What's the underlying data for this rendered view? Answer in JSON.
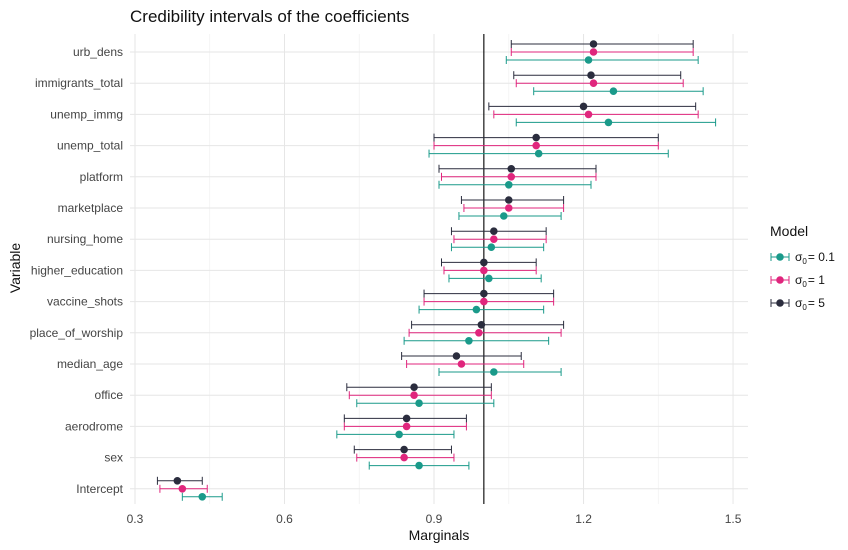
{
  "chart_data": {
    "type": "errorbar",
    "title": "Credibility intervals of the coefficients",
    "xlabel": "Marginals",
    "ylabel": "Variable",
    "xlim": [
      0.29,
      1.53
    ],
    "x_ticks": [
      0.3,
      0.6,
      0.9,
      1.2,
      1.5
    ],
    "x_tick_labels": [
      "0.3",
      "0.6",
      "0.9",
      "1.2",
      "1.5"
    ],
    "reference_line_x": 1.0,
    "grid": true,
    "legend_position": "right",
    "legend_title": "Model",
    "categories": [
      "urb_dens",
      "immigrants_total",
      "unemp_immg",
      "unemp_total",
      "platform",
      "marketplace",
      "nursing_home",
      "higher_education",
      "vaccine_shots",
      "place_of_worship",
      "median_age",
      "office",
      "aerodrome",
      "sex",
      "Intercept"
    ],
    "series": [
      {
        "name": "σ0 = 0.1",
        "legend_base": "σ",
        "legend_sub": "0",
        "legend_rest": "= 0.1",
        "color": "#1a9a8a",
        "mean": [
          1.21,
          1.26,
          1.25,
          1.11,
          1.05,
          1.04,
          1.015,
          1.01,
          0.985,
          0.97,
          1.02,
          0.87,
          0.83,
          0.87,
          0.435
        ],
        "lower": [
          1.045,
          1.1,
          1.065,
          0.89,
          0.91,
          0.95,
          0.935,
          0.93,
          0.87,
          0.84,
          0.91,
          0.745,
          0.705,
          0.77,
          0.395
        ],
        "upper": [
          1.43,
          1.44,
          1.465,
          1.37,
          1.215,
          1.155,
          1.12,
          1.115,
          1.12,
          1.13,
          1.155,
          1.02,
          0.94,
          0.97,
          0.475
        ]
      },
      {
        "name": "σ0 = 1",
        "legend_base": "σ",
        "legend_sub": "0",
        "legend_rest": "= 1",
        "color": "#e0267d",
        "mean": [
          1.22,
          1.22,
          1.21,
          1.105,
          1.055,
          1.05,
          1.02,
          1.0,
          1.0,
          0.99,
          0.955,
          0.86,
          0.845,
          0.84,
          0.395
        ],
        "lower": [
          1.055,
          1.065,
          1.02,
          0.9,
          0.915,
          0.96,
          0.94,
          0.92,
          0.88,
          0.85,
          0.845,
          0.73,
          0.72,
          0.745,
          0.35
        ],
        "upper": [
          1.42,
          1.4,
          1.43,
          1.35,
          1.225,
          1.16,
          1.125,
          1.105,
          1.14,
          1.155,
          1.08,
          1.015,
          0.965,
          0.94,
          0.445
        ]
      },
      {
        "name": "σ0 = 5",
        "legend_base": "σ",
        "legend_sub": "0",
        "legend_rest": "= 5",
        "color": "#2b2d3e",
        "mean": [
          1.22,
          1.215,
          1.2,
          1.105,
          1.055,
          1.05,
          1.02,
          1.0,
          1.0,
          0.995,
          0.945,
          0.86,
          0.845,
          0.84,
          0.385
        ],
        "lower": [
          1.055,
          1.06,
          1.01,
          0.9,
          0.91,
          0.955,
          0.935,
          0.915,
          0.88,
          0.855,
          0.835,
          0.725,
          0.72,
          0.74,
          0.345
        ],
        "upper": [
          1.42,
          1.395,
          1.425,
          1.35,
          1.225,
          1.16,
          1.125,
          1.105,
          1.14,
          1.16,
          1.075,
          1.015,
          0.965,
          0.935,
          0.435
        ]
      }
    ]
  }
}
